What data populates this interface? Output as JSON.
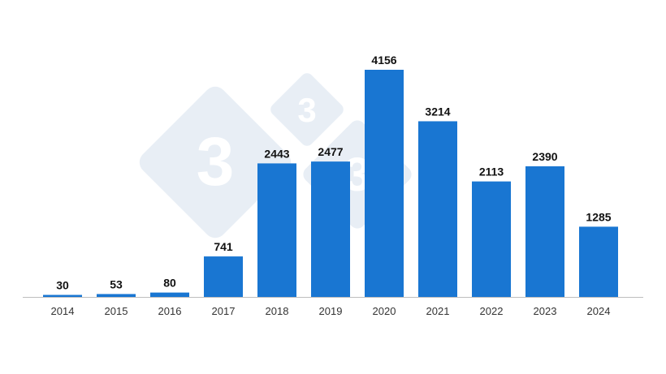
{
  "chart_data": {
    "type": "bar",
    "title": "",
    "xlabel": "",
    "ylabel": "",
    "categories": [
      "2014",
      "2015",
      "2016",
      "2017",
      "2018",
      "2019",
      "2020",
      "2021",
      "2022",
      "2023",
      "2024"
    ],
    "values": [
      30,
      53,
      80,
      741,
      2443,
      2477,
      4156,
      3214,
      2113,
      2390,
      1285
    ],
    "data_labels": [
      "30",
      "53",
      "80",
      "741",
      "2443",
      "2477",
      "4156",
      "3214",
      "2113",
      "2390",
      "1285"
    ],
    "ylim": [
      0,
      4156
    ],
    "grid": false,
    "legend": "none",
    "colors": {
      "bar": "#1976d2",
      "axis": "#bdbdbd",
      "watermark": "#e8eef5"
    }
  },
  "watermark": {
    "text": "333",
    "glyph": "3"
  }
}
